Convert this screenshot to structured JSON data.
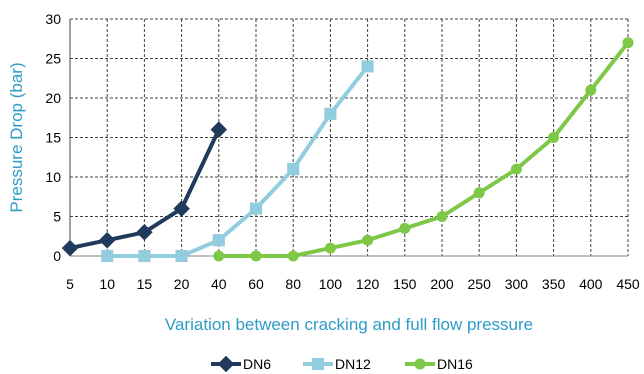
{
  "chart_data": {
    "type": "line",
    "title": "",
    "xlabel": "Variation between cracking and full flow pressure",
    "ylabel": "Pressure Drop (bar)",
    "categories": [
      "5",
      "10",
      "15",
      "20",
      "40",
      "60",
      "80",
      "100",
      "120",
      "150",
      "200",
      "250",
      "300",
      "350",
      "400",
      "450"
    ],
    "ylim": [
      0,
      30
    ],
    "yticks": [
      0,
      5,
      10,
      15,
      20,
      25,
      30
    ],
    "grid": true,
    "legend_position": "bottom",
    "series": [
      {
        "name": "DN6",
        "color": "#1f3a5a",
        "marker": "diamond",
        "values": [
          1,
          2,
          3,
          6,
          16,
          null,
          null,
          null,
          null,
          null,
          null,
          null,
          null,
          null,
          null,
          null
        ]
      },
      {
        "name": "DN12",
        "color": "#92cddf",
        "marker": "square",
        "values": [
          null,
          0,
          0,
          0,
          2,
          6,
          11,
          18,
          24,
          null,
          null,
          null,
          null,
          null,
          null,
          null
        ]
      },
      {
        "name": "DN16",
        "color": "#7dc846",
        "marker": "circle",
        "values": [
          null,
          null,
          null,
          null,
          0,
          0,
          0,
          1,
          2,
          3.5,
          5,
          8,
          11,
          15,
          21,
          27
        ]
      }
    ]
  }
}
